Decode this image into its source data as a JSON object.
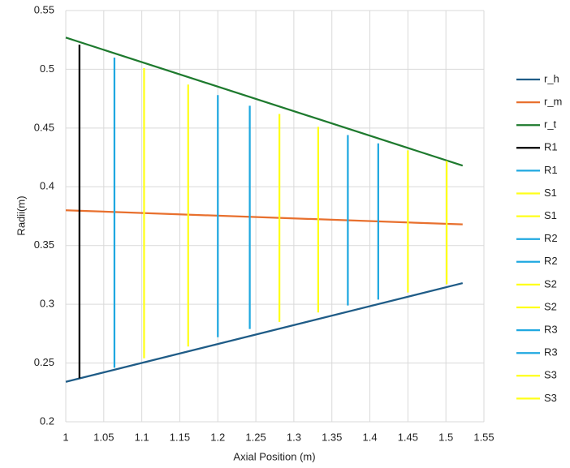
{
  "chart_data": {
    "type": "line",
    "x_label": "Axial Position (m)",
    "y_label": "Radii(m)",
    "xlim": [
      1,
      1.55
    ],
    "xticks": [
      1,
      1.05,
      1.1,
      1.15,
      1.2,
      1.25,
      1.3,
      1.35,
      1.4,
      1.45,
      1.5,
      1.55
    ],
    "ylim": [
      0.2,
      0.55
    ],
    "yticks": [
      0.2,
      0.25,
      0.3,
      0.35,
      0.4,
      0.45,
      0.5,
      0.55
    ],
    "grid": true,
    "legend": "right",
    "series": [
      {
        "name": "r_h",
        "color": "#1f5c87",
        "x": [
          1,
          1.522
        ],
        "values": [
          0.234,
          0.318
        ]
      },
      {
        "name": "r_m",
        "color": "#e8702e",
        "x": [
          1,
          1.522
        ],
        "values": [
          0.38,
          0.368
        ]
      },
      {
        "name": "r_t",
        "color": "#1e7a2e",
        "x": [
          1,
          1.522
        ],
        "values": [
          0.527,
          0.418
        ]
      },
      {
        "name": "R1",
        "color": "#000000",
        "x": [
          1.018,
          1.018
        ],
        "values": [
          0.237,
          0.521
        ]
      },
      {
        "name": "R1",
        "color": "#1fa8e0",
        "x": [
          1.064,
          1.064
        ],
        "values": [
          0.246,
          0.51
        ]
      },
      {
        "name": "S1",
        "color": "#ffff1a",
        "x": [
          1.103,
          1.103
        ],
        "values": [
          0.254,
          0.501
        ]
      },
      {
        "name": "S1",
        "color": "#ffff1a",
        "x": [
          1.161,
          1.161
        ],
        "values": [
          0.264,
          0.487
        ]
      },
      {
        "name": "R2",
        "color": "#1fa8e0",
        "x": [
          1.2,
          1.2
        ],
        "values": [
          0.272,
          0.478
        ]
      },
      {
        "name": "R2",
        "color": "#1fa8e0",
        "x": [
          1.242,
          1.242
        ],
        "values": [
          0.279,
          0.469
        ]
      },
      {
        "name": "S2",
        "color": "#ffff1a",
        "x": [
          1.281,
          1.281
        ],
        "values": [
          0.285,
          0.462
        ]
      },
      {
        "name": "S2",
        "color": "#ffff1a",
        "x": [
          1.332,
          1.332
        ],
        "values": [
          0.293,
          0.451
        ]
      },
      {
        "name": "R3",
        "color": "#1fa8e0",
        "x": [
          1.371,
          1.371
        ],
        "values": [
          0.299,
          0.444
        ]
      },
      {
        "name": "R3",
        "color": "#1fa8e0",
        "x": [
          1.411,
          1.411
        ],
        "values": [
          0.304,
          0.437
        ]
      },
      {
        "name": "S3",
        "color": "#ffff1a",
        "x": [
          1.45,
          1.45
        ],
        "values": [
          0.31,
          0.431
        ]
      },
      {
        "name": "S3",
        "color": "#ffff1a",
        "x": [
          1.501,
          1.501
        ],
        "values": [
          0.317,
          0.422
        ]
      }
    ]
  }
}
